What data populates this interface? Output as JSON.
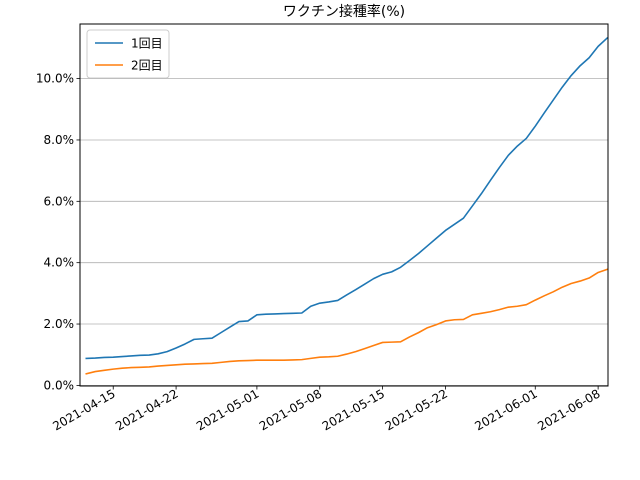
{
  "chart_data": {
    "type": "line",
    "title": "ワクチン接種率(%)",
    "xlabel": "",
    "ylabel": "",
    "x_type": "date",
    "xlim": [
      "2021-04-12",
      "2021-06-08"
    ],
    "ylim": [
      0,
      11.3
    ],
    "grid": "horizontal",
    "legend_position": "top-left",
    "yticks": [
      0,
      2,
      4,
      6,
      8,
      10
    ],
    "ytick_labels": [
      "0.0%",
      "2.0%",
      "4.0%",
      "6.0%",
      "8.0%",
      "10.0%"
    ],
    "xticks": [
      "2021-04-15",
      "2021-04-22",
      "2021-05-01",
      "2021-05-08",
      "2021-05-15",
      "2021-05-22",
      "2021-06-01",
      "2021-06-08"
    ],
    "xtick_labels": [
      "2021-04-15",
      "2021-04-22",
      "2021-05-01",
      "2021-05-08",
      "2021-05-15",
      "2021-05-22",
      "2021-06-01",
      "2021-06-08"
    ],
    "series": [
      {
        "name": "1回目",
        "color": "#1f77b4",
        "points": [
          [
            "2021-04-12",
            0.88
          ],
          [
            "2021-04-13",
            0.89
          ],
          [
            "2021-04-14",
            0.91
          ],
          [
            "2021-04-15",
            0.92
          ],
          [
            "2021-04-16",
            0.94
          ],
          [
            "2021-04-17",
            0.96
          ],
          [
            "2021-04-18",
            0.98
          ],
          [
            "2021-04-19",
            0.99
          ],
          [
            "2021-04-20",
            1.03
          ],
          [
            "2021-04-21",
            1.1
          ],
          [
            "2021-04-22",
            1.22
          ],
          [
            "2021-04-23",
            1.35
          ],
          [
            "2021-04-24",
            1.5
          ],
          [
            "2021-04-25",
            1.52
          ],
          [
            "2021-04-26",
            1.54
          ],
          [
            "2021-04-27",
            1.72
          ],
          [
            "2021-04-28",
            1.9
          ],
          [
            "2021-04-29",
            2.08
          ],
          [
            "2021-04-30",
            2.1
          ],
          [
            "2021-05-01",
            2.3
          ],
          [
            "2021-05-02",
            2.32
          ],
          [
            "2021-05-03",
            2.33
          ],
          [
            "2021-05-04",
            2.34
          ],
          [
            "2021-05-05",
            2.35
          ],
          [
            "2021-05-06",
            2.36
          ],
          [
            "2021-05-07",
            2.58
          ],
          [
            "2021-05-08",
            2.68
          ],
          [
            "2021-05-09",
            2.72
          ],
          [
            "2021-05-10",
            2.77
          ],
          [
            "2021-05-11",
            2.95
          ],
          [
            "2021-05-12",
            3.12
          ],
          [
            "2021-05-13",
            3.3
          ],
          [
            "2021-05-14",
            3.48
          ],
          [
            "2021-05-15",
            3.62
          ],
          [
            "2021-05-16",
            3.7
          ],
          [
            "2021-05-17",
            3.85
          ],
          [
            "2021-05-18",
            4.07
          ],
          [
            "2021-05-19",
            4.3
          ],
          [
            "2021-05-20",
            4.55
          ],
          [
            "2021-05-21",
            4.8
          ],
          [
            "2021-05-22",
            5.05
          ],
          [
            "2021-05-23",
            5.25
          ],
          [
            "2021-05-24",
            5.45
          ],
          [
            "2021-05-25",
            5.85
          ],
          [
            "2021-05-26",
            6.25
          ],
          [
            "2021-05-27",
            6.68
          ],
          [
            "2021-05-28",
            7.1
          ],
          [
            "2021-05-29",
            7.5
          ],
          [
            "2021-05-30",
            7.8
          ],
          [
            "2021-05-31",
            8.05
          ],
          [
            "2021-06-01",
            8.45
          ],
          [
            "2021-06-02",
            8.88
          ],
          [
            "2021-06-03",
            9.3
          ],
          [
            "2021-06-04",
            9.72
          ],
          [
            "2021-06-05",
            10.1
          ],
          [
            "2021-06-06",
            10.42
          ],
          [
            "2021-06-07",
            10.68
          ],
          [
            "2021-06-08",
            11.05
          ],
          [
            "2021-06-09",
            11.32
          ]
        ]
      },
      {
        "name": "2回目",
        "color": "#ff7f0e",
        "points": [
          [
            "2021-04-12",
            0.38
          ],
          [
            "2021-04-13",
            0.45
          ],
          [
            "2021-04-14",
            0.49
          ],
          [
            "2021-04-15",
            0.53
          ],
          [
            "2021-04-16",
            0.56
          ],
          [
            "2021-04-17",
            0.58
          ],
          [
            "2021-04-18",
            0.59
          ],
          [
            "2021-04-19",
            0.6
          ],
          [
            "2021-04-20",
            0.63
          ],
          [
            "2021-04-21",
            0.65
          ],
          [
            "2021-04-22",
            0.67
          ],
          [
            "2021-04-23",
            0.69
          ],
          [
            "2021-04-24",
            0.7
          ],
          [
            "2021-04-25",
            0.71
          ],
          [
            "2021-04-26",
            0.72
          ],
          [
            "2021-04-27",
            0.75
          ],
          [
            "2021-04-28",
            0.78
          ],
          [
            "2021-04-29",
            0.8
          ],
          [
            "2021-04-30",
            0.81
          ],
          [
            "2021-05-01",
            0.82
          ],
          [
            "2021-05-02",
            0.82
          ],
          [
            "2021-05-03",
            0.82
          ],
          [
            "2021-05-04",
            0.82
          ],
          [
            "2021-05-05",
            0.83
          ],
          [
            "2021-05-06",
            0.84
          ],
          [
            "2021-05-07",
            0.88
          ],
          [
            "2021-05-08",
            0.92
          ],
          [
            "2021-05-09",
            0.93
          ],
          [
            "2021-05-10",
            0.95
          ],
          [
            "2021-05-11",
            1.02
          ],
          [
            "2021-05-12",
            1.1
          ],
          [
            "2021-05-13",
            1.2
          ],
          [
            "2021-05-14",
            1.3
          ],
          [
            "2021-05-15",
            1.4
          ],
          [
            "2021-05-16",
            1.41
          ],
          [
            "2021-05-17",
            1.42
          ],
          [
            "2021-05-18",
            1.58
          ],
          [
            "2021-05-19",
            1.72
          ],
          [
            "2021-05-20",
            1.88
          ],
          [
            "2021-05-21",
            1.98
          ],
          [
            "2021-05-22",
            2.1
          ],
          [
            "2021-05-23",
            2.14
          ],
          [
            "2021-05-24",
            2.15
          ],
          [
            "2021-05-25",
            2.3
          ],
          [
            "2021-05-26",
            2.35
          ],
          [
            "2021-05-27",
            2.4
          ],
          [
            "2021-05-28",
            2.47
          ],
          [
            "2021-05-29",
            2.55
          ],
          [
            "2021-05-30",
            2.58
          ],
          [
            "2021-05-31",
            2.63
          ],
          [
            "2021-06-01",
            2.78
          ],
          [
            "2021-06-02",
            2.92
          ],
          [
            "2021-06-03",
            3.05
          ],
          [
            "2021-06-04",
            3.2
          ],
          [
            "2021-06-05",
            3.32
          ],
          [
            "2021-06-06",
            3.4
          ],
          [
            "2021-06-07",
            3.5
          ],
          [
            "2021-06-08",
            3.68
          ],
          [
            "2021-06-09",
            3.78
          ]
        ]
      }
    ]
  }
}
